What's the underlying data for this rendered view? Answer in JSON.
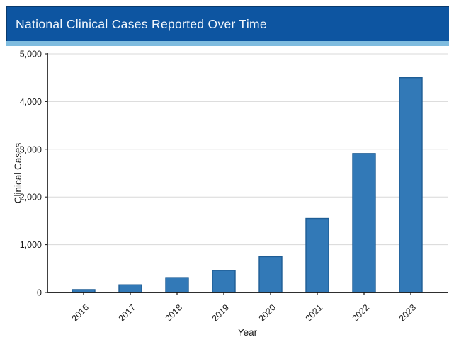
{
  "banner": {
    "title": "National Clinical Cases Reported Over Time",
    "bg_color": "#0d55a1",
    "accent_strip_color": "#7fbcdf"
  },
  "chart_data": {
    "type": "bar",
    "title": "National Clinical Cases Reported Over Time",
    "categories": [
      "2016",
      "2017",
      "2018",
      "2019",
      "2020",
      "2021",
      "2022",
      "2023"
    ],
    "values": [
      60,
      160,
      310,
      460,
      750,
      1550,
      2910,
      4500
    ],
    "xlabel": "Year",
    "ylabel": "Clinical Cases",
    "ylim": [
      0,
      5000
    ],
    "ytick_step": 1000,
    "ytick_labels": [
      "0",
      "1,000",
      "2,000",
      "3,000",
      "4,000",
      "5,000"
    ],
    "grid": true,
    "legend": "none",
    "bar_color": "#3279b7",
    "bar_edge_color": "#1e5d95",
    "gridline_color": "#d8d8d8",
    "axis_color": "#111111",
    "tick_label_color": "#1a1a1a"
  }
}
